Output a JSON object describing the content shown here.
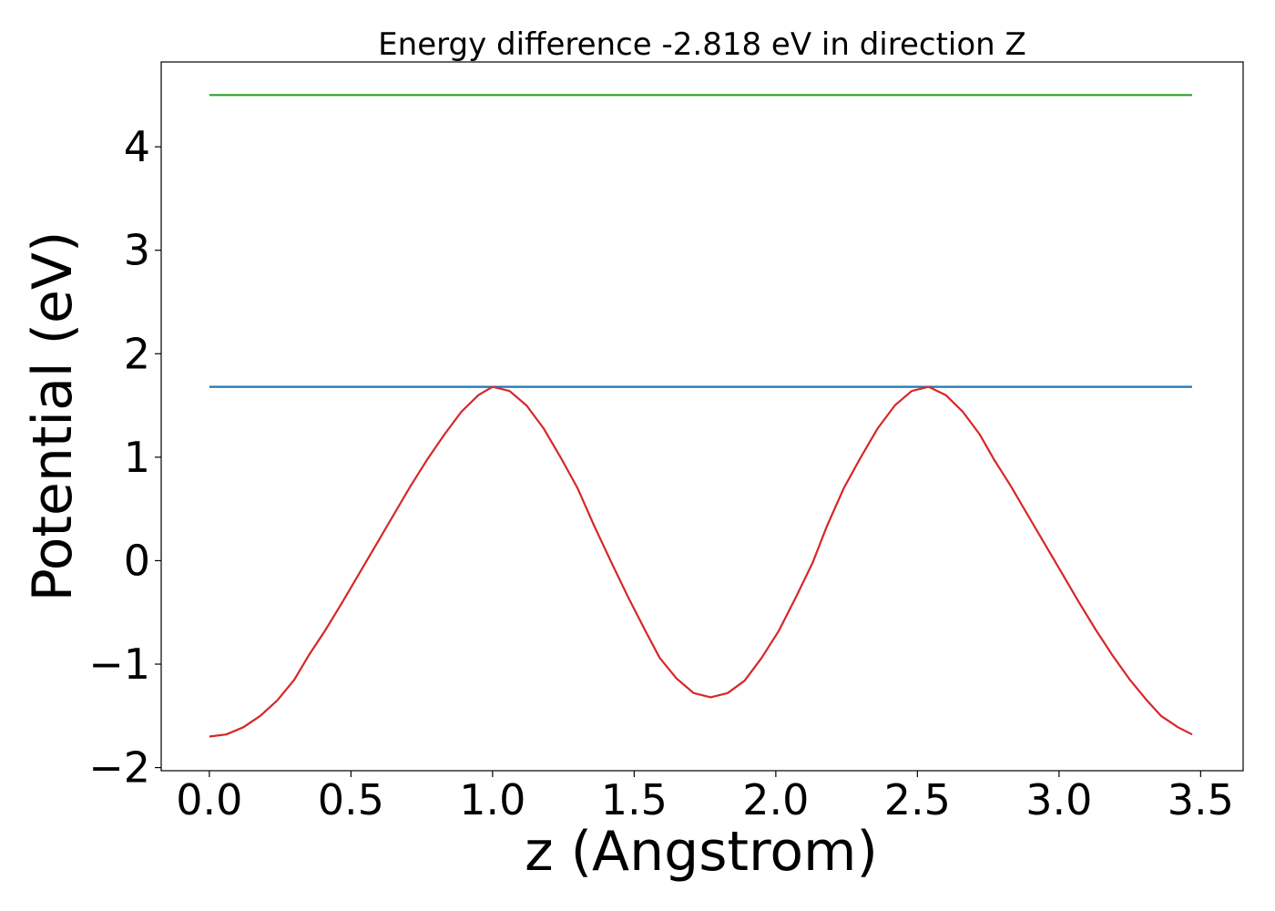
{
  "chart_data": {
    "type": "line",
    "title": "Energy difference -2.818 eV in direction Z",
    "xlabel": "z (Angstrom)",
    "ylabel": "Potential (eV)",
    "xlim": [
      -0.17,
      3.65
    ],
    "ylim": [
      -2.03,
      4.82
    ],
    "xticks": [
      0.0,
      0.5,
      1.0,
      1.5,
      2.0,
      2.5,
      3.0,
      3.5
    ],
    "xtick_labels": [
      "0.0",
      "0.5",
      "1.0",
      "1.5",
      "2.0",
      "2.5",
      "3.0",
      "3.5"
    ],
    "yticks": [
      -2,
      -1,
      0,
      1,
      2,
      3,
      4
    ],
    "ytick_labels": [
      "−2",
      "−1",
      "0",
      "1",
      "2",
      "3",
      "4"
    ],
    "grid": false,
    "series": [
      {
        "color": "#2ca02c",
        "x": [
          0.0,
          3.47
        ],
        "y": [
          4.5,
          4.5
        ]
      },
      {
        "color": "#1f77b4",
        "x": [
          0.0,
          3.47
        ],
        "y": [
          1.68,
          1.68
        ]
      },
      {
        "color": "#d62728",
        "x": [
          0.0,
          0.06,
          0.12,
          0.18,
          0.24,
          0.3,
          0.35,
          0.41,
          0.47,
          0.53,
          0.59,
          0.65,
          0.71,
          0.77,
          0.83,
          0.89,
          0.95,
          1.0,
          1.06,
          1.12,
          1.18,
          1.24,
          1.3,
          1.36,
          1.42,
          1.48,
          1.54,
          1.59,
          1.65,
          1.71,
          1.77,
          1.83,
          1.89,
          1.95,
          2.01,
          2.07,
          2.13,
          2.18,
          2.24,
          2.3,
          2.36,
          2.42,
          2.48,
          2.54,
          2.6,
          2.66,
          2.72,
          2.77,
          2.83,
          2.89,
          2.95,
          3.01,
          3.07,
          3.13,
          3.19,
          3.25,
          3.31,
          3.36,
          3.42,
          3.47
        ],
        "y": [
          -1.7,
          -1.68,
          -1.61,
          -1.5,
          -1.35,
          -1.15,
          -0.92,
          -0.67,
          -0.4,
          -0.12,
          0.16,
          0.44,
          0.72,
          0.98,
          1.22,
          1.44,
          1.6,
          1.68,
          1.64,
          1.5,
          1.28,
          1.0,
          0.7,
          0.33,
          -0.02,
          -0.36,
          -0.68,
          -0.94,
          -1.14,
          -1.28,
          -1.32,
          -1.28,
          -1.16,
          -0.94,
          -0.68,
          -0.36,
          -0.02,
          0.33,
          0.7,
          1.0,
          1.28,
          1.5,
          1.64,
          1.68,
          1.6,
          1.44,
          1.22,
          0.98,
          0.72,
          0.44,
          0.16,
          -0.12,
          -0.4,
          -0.67,
          -0.92,
          -1.15,
          -1.35,
          -1.5,
          -1.61,
          -1.68
        ]
      }
    ]
  }
}
